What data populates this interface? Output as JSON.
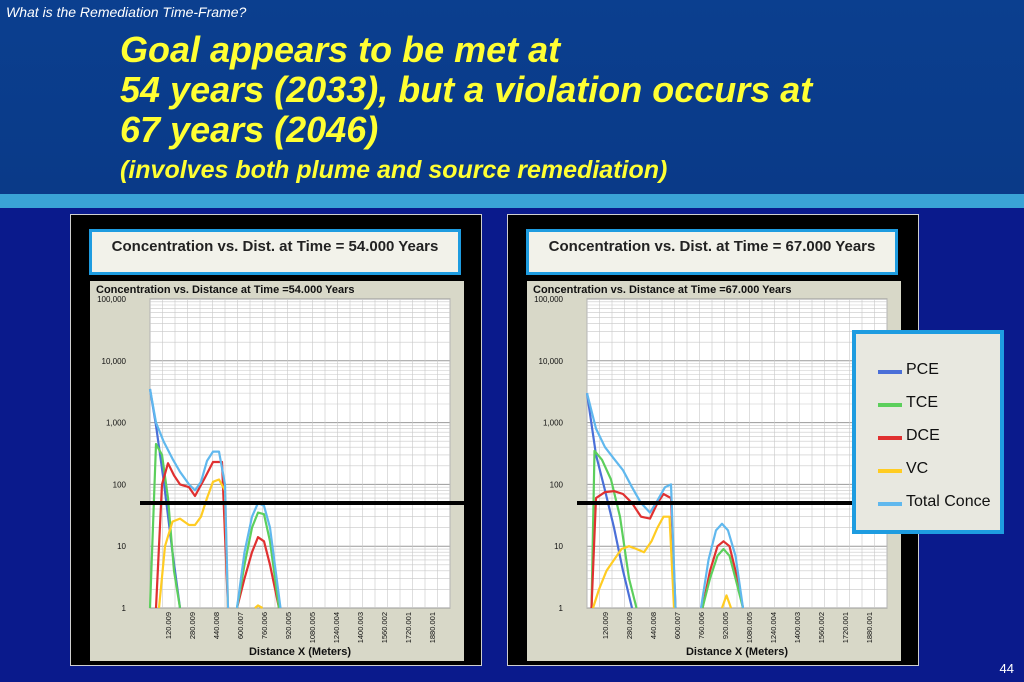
{
  "slide": {
    "breadcrumb": "What is the Remediation Time-Frame?",
    "title_lines": [
      "Goal appears to be met at",
      "54 years (2033), but a violation occurs at",
      "67 years (2046)"
    ],
    "subtitle": "(involves both plume and source remediation)",
    "page_number": "44",
    "colors": {
      "background": "#0a1a8c",
      "title": "#ffff33",
      "accent": "#1e9ce0"
    }
  },
  "chart_data": [
    {
      "type": "line",
      "caption": "Concentration vs. Dist. at Time  = 54.000 Years",
      "title": "Concentration  vs. Distance at Time =54.000 Years",
      "xlabel": "Distance X (Meters)",
      "ylabel": "",
      "x_ticks": [
        "120.009",
        "280.009",
        "440.008",
        "600.007",
        "760.006",
        "920.005",
        "1080.005",
        "1240.004",
        "1400.003",
        "1560.002",
        "1720.001",
        "1880.001"
      ],
      "y_ticks": [
        "1",
        "10",
        "100",
        "1,000",
        "10,000",
        "100,000"
      ],
      "y_scale": "log",
      "ylim": [
        1,
        100000
      ],
      "xlim": [
        0,
        2000
      ],
      "goal_line": 50,
      "series": [
        {
          "name": "PCE",
          "color": "#4a6fd8",
          "x": [
            0,
            40,
            90,
            150,
            200
          ],
          "y": [
            3500,
            900,
            120,
            8,
            1
          ]
        },
        {
          "name": "TCE",
          "color": "#5ccf5c",
          "x": [
            0,
            40,
            80,
            120,
            160,
            200
          ],
          "y": [
            1,
            450,
            300,
            60,
            4,
            1
          ]
        },
        {
          "name": "DCE",
          "color": "#e03030",
          "x": [
            40,
            80,
            120,
            160,
            200,
            260,
            300,
            360,
            420,
            480,
            520
          ],
          "y": [
            1,
            100,
            220,
            140,
            100,
            90,
            65,
            120,
            230,
            230,
            1
          ]
        },
        {
          "name": "VC",
          "color": "#ffcc22",
          "x": [
            60,
            100,
            150,
            200,
            260,
            300,
            340,
            380,
            420,
            460,
            500,
            520
          ],
          "y": [
            1,
            10,
            25,
            28,
            22,
            22,
            30,
            60,
            110,
            120,
            80,
            1
          ]
        },
        {
          "name": "Total Conc",
          "color": "#60b8ee",
          "x": [
            0,
            40,
            90,
            150,
            200,
            260,
            300,
            340,
            380,
            420,
            460,
            500,
            520
          ],
          "y": [
            3500,
            1000,
            500,
            260,
            160,
            100,
            80,
            110,
            240,
            340,
            340,
            100,
            1
          ]
        },
        {
          "name": "DCE",
          "color": "#e03030",
          "x": [
            580,
            630,
            680,
            720,
            760,
            800,
            860
          ],
          "y": [
            1,
            3,
            8,
            14,
            12,
            5,
            1
          ]
        },
        {
          "name": "TCE",
          "color": "#5ccf5c",
          "x": [
            580,
            630,
            680,
            720,
            760,
            800,
            860
          ],
          "y": [
            1,
            5,
            20,
            35,
            33,
            12,
            1
          ]
        },
        {
          "name": "Total Conc",
          "color": "#60b8ee",
          "x": [
            580,
            630,
            680,
            720,
            760,
            800,
            870
          ],
          "y": [
            1,
            8,
            30,
            50,
            45,
            20,
            1
          ]
        },
        {
          "name": "VC",
          "color": "#ffcc22",
          "x": [
            700,
            720,
            750
          ],
          "y": [
            1,
            1.1,
            1
          ]
        }
      ]
    },
    {
      "type": "line",
      "caption": "Concentration vs. Dist. at Time  = 67.000 Years",
      "title": "Concentration  vs. Distance at Time =67.000 Years",
      "xlabel": "Distance X (Meters)",
      "ylabel": "",
      "x_ticks": [
        "120.009",
        "280.009",
        "440.008",
        "600.007",
        "760.006",
        "920.005",
        "1080.005",
        "1240.004",
        "1400.003",
        "1560.002",
        "1720.001",
        "1880.001"
      ],
      "y_ticks": [
        "1",
        "10",
        "100",
        "1,000",
        "10,000",
        "100,000"
      ],
      "y_scale": "log",
      "ylim": [
        1,
        100000
      ],
      "xlim": [
        0,
        2000
      ],
      "goal_line": 50,
      "series": [
        {
          "name": "PCE",
          "color": "#4a6fd8",
          "x": [
            0,
            60,
            120,
            180,
            240,
            300
          ],
          "y": [
            3000,
            300,
            80,
            20,
            4,
            1
          ]
        },
        {
          "name": "TCE",
          "color": "#5ccf5c",
          "x": [
            30,
            50,
            100,
            160,
            220,
            280,
            330
          ],
          "y": [
            1,
            350,
            250,
            120,
            30,
            3,
            1
          ]
        },
        {
          "name": "DCE",
          "color": "#e03030",
          "x": [
            30,
            60,
            120,
            180,
            240,
            300,
            360,
            420,
            470,
            510,
            560,
            590
          ],
          "y": [
            1,
            60,
            75,
            78,
            70,
            50,
            30,
            28,
            50,
            70,
            60,
            1
          ]
        },
        {
          "name": "VC",
          "color": "#ffcc22",
          "x": [
            40,
            80,
            130,
            180,
            230,
            280,
            330,
            380,
            430,
            470,
            510,
            550,
            580
          ],
          "y": [
            1,
            2,
            4,
            6,
            9,
            10,
            9,
            8,
            12,
            20,
            30,
            30,
            1
          ]
        },
        {
          "name": "Total Conc",
          "color": "#60b8ee",
          "x": [
            0,
            60,
            120,
            180,
            240,
            300,
            360,
            420,
            470,
            520,
            560,
            590
          ],
          "y": [
            3000,
            800,
            400,
            260,
            170,
            90,
            50,
            35,
            55,
            90,
            100,
            1
          ]
        },
        {
          "name": "DCE",
          "color": "#e03030",
          "x": [
            770,
            820,
            870,
            910,
            950,
            990,
            1040
          ],
          "y": [
            1,
            4,
            10,
            12,
            10,
            4,
            1
          ]
        },
        {
          "name": "TCE",
          "color": "#5ccf5c",
          "x": [
            770,
            820,
            870,
            910,
            950,
            990,
            1040
          ],
          "y": [
            1,
            3,
            7,
            9,
            7,
            3,
            1
          ]
        },
        {
          "name": "Total Conc",
          "color": "#60b8ee",
          "x": [
            760,
            810,
            860,
            900,
            940,
            990,
            1040
          ],
          "y": [
            1,
            6,
            18,
            23,
            18,
            7,
            1
          ]
        },
        {
          "name": "VC",
          "color": "#ffcc22",
          "x": [
            900,
            930,
            960
          ],
          "y": [
            1,
            1.6,
            1
          ]
        }
      ]
    }
  ],
  "legend": {
    "items": [
      {
        "label": "PCE",
        "color": "#4a6fd8"
      },
      {
        "label": "TCE",
        "color": "#5ccf5c"
      },
      {
        "label": "DCE",
        "color": "#e03030"
      },
      {
        "label": "VC",
        "color": "#ffcc22"
      },
      {
        "label": "Total Conce",
        "color": "#60b8ee"
      }
    ]
  }
}
